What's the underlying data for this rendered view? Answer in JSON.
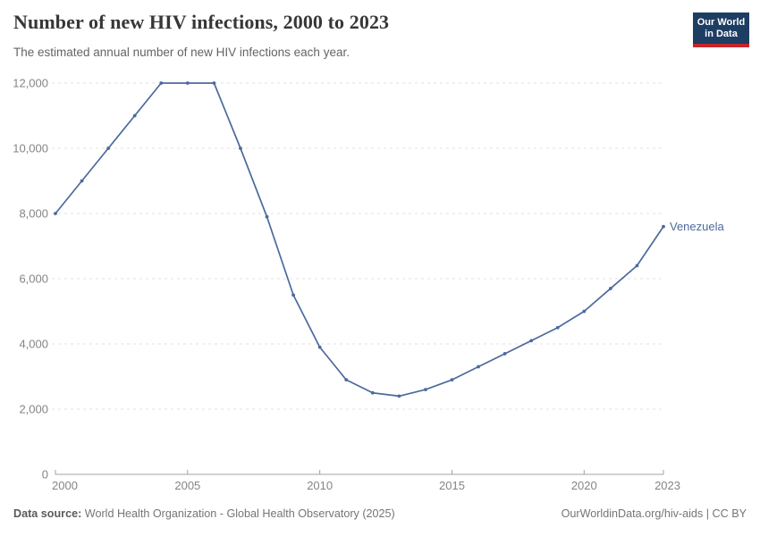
{
  "header": {
    "title": "Number of new HIV infections, 2000 to 2023",
    "subtitle": "The estimated annual number of new HIV infections each year.",
    "logo": {
      "line1": "Our World",
      "line2": "in Data"
    }
  },
  "chart_data": {
    "type": "line",
    "title": "Number of new HIV infections, 2000 to 2023",
    "xlabel": "",
    "ylabel": "",
    "x": [
      2000,
      2001,
      2002,
      2003,
      2004,
      2005,
      2006,
      2007,
      2008,
      2009,
      2010,
      2011,
      2012,
      2013,
      2014,
      2015,
      2016,
      2017,
      2018,
      2019,
      2020,
      2021,
      2022,
      2023
    ],
    "series": [
      {
        "name": "Venezuela",
        "values": [
          8000,
          9000,
          10000,
          11000,
          12000,
          12000,
          12000,
          10000,
          7900,
          5500,
          3900,
          2900,
          2500,
          2400,
          2600,
          2900,
          3300,
          3700,
          4100,
          4500,
          5000,
          5700,
          6400,
          7600
        ]
      }
    ],
    "ylim": [
      0,
      12000
    ],
    "yticks": [
      0,
      2000,
      4000,
      6000,
      8000,
      10000,
      12000
    ],
    "ytick_labels": [
      "0",
      "2,000",
      "4,000",
      "6,000",
      "8,000",
      "10,000",
      "12,000"
    ],
    "xticks": [
      2000,
      2005,
      2010,
      2015,
      2020,
      2023
    ],
    "xtick_labels": [
      "2000",
      "2005",
      "2010",
      "2015",
      "2020",
      "2023"
    ],
    "grid": "horizontal-dashed",
    "legend_position": "end-of-line-label"
  },
  "colors": {
    "line": "#4c6a9c",
    "grid": "#e0e0e0",
    "axis": "#a1a1a1",
    "tick_label": "#858585",
    "title": "#383636",
    "subtitle": "#646464",
    "footer": "#757575",
    "footer_label": "#5b5b5b",
    "logo_bg": "#1d3d63",
    "logo_accent": "#c7252c"
  },
  "footer": {
    "datasource_label": "Data source:",
    "datasource_text": " World Health Organization - Global Health Observatory (2025)",
    "rights": "OurWorldinData.org/hiv-aids | CC BY"
  }
}
